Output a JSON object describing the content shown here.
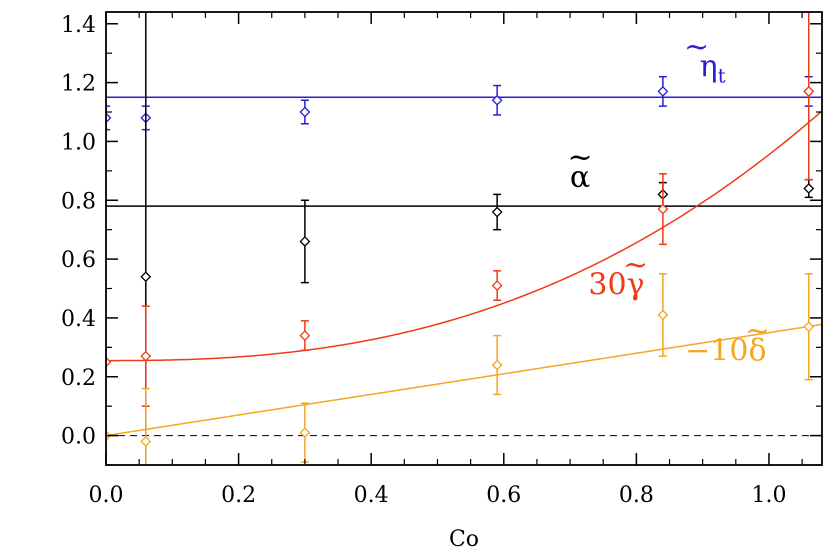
{
  "chart_data": {
    "type": "scatter",
    "xlabel": "Co",
    "xlim": [
      0.0,
      1.08
    ],
    "ylim": [
      -0.1,
      1.44
    ],
    "xticks": [
      0.0,
      0.2,
      0.4,
      0.6,
      0.8,
      1.0
    ],
    "xtick_labels": [
      "0.0",
      "0.2",
      "0.4",
      "0.6",
      "0.8",
      "1.0"
    ],
    "yticks": [
      0.0,
      0.2,
      0.4,
      0.6,
      0.8,
      1.0,
      1.2,
      1.4
    ],
    "ytick_labels": [
      "0.0",
      "0.2",
      "0.4",
      "0.6",
      "0.8",
      "1.0",
      "1.2",
      "1.4"
    ],
    "zero_line": {
      "y": 0.0,
      "style": "dashed",
      "color": "#000000"
    },
    "series": [
      {
        "label_main": "η",
        "label_tilde": "~",
        "label_sub": "t",
        "color": "#2a1fd6",
        "points": [
          {
            "x": 0.0,
            "y": 1.08,
            "err": 0.04
          },
          {
            "x": 0.06,
            "y": 1.08,
            "err": 0.04
          },
          {
            "x": 0.3,
            "y": 1.1,
            "err": 0.04
          },
          {
            "x": 0.59,
            "y": 1.14,
            "err": 0.05
          },
          {
            "x": 0.84,
            "y": 1.17,
            "err": 0.05
          },
          {
            "x": 1.06,
            "y": 1.17,
            "err": 0.05
          }
        ],
        "fit": {
          "kind": "constant",
          "value": 1.15
        }
      },
      {
        "label_main": "α",
        "label_tilde": "~",
        "label_sub": "",
        "color": "#000000",
        "points": [
          {
            "x": 0.06,
            "y": 0.54,
            "err": 0.93
          },
          {
            "x": 0.3,
            "y": 0.66,
            "err": 0.14
          },
          {
            "x": 0.59,
            "y": 0.76,
            "err": 0.06
          },
          {
            "x": 0.84,
            "y": 0.82,
            "err": 0.04
          },
          {
            "x": 1.06,
            "y": 0.84,
            "err": 0.03
          }
        ],
        "fit": {
          "kind": "constant",
          "value": 0.78
        }
      },
      {
        "label_main": "30γ",
        "label_tilde": "~",
        "label_sub": "",
        "color": "#f03a17",
        "points": [
          {
            "x": 0.0,
            "y": 0.25,
            "err": 0.05
          },
          {
            "x": 0.06,
            "y": 0.27,
            "err": 0.17
          },
          {
            "x": 0.3,
            "y": 0.34,
            "err": 0.05
          },
          {
            "x": 0.59,
            "y": 0.51,
            "err": 0.05
          },
          {
            "x": 0.84,
            "y": 0.77,
            "err": 0.12
          },
          {
            "x": 1.06,
            "y": 1.17,
            "err": 0.3
          }
        ],
        "fit": {
          "kind": "poly",
          "a": 0.255,
          "b": 0.7,
          "p": 2.5
        }
      },
      {
        "label_main": "−10δ",
        "label_tilde": "~",
        "label_sub": "",
        "color": "#f5a623",
        "points": [
          {
            "x": 0.0,
            "y": 0.0,
            "err": 0.1
          },
          {
            "x": 0.06,
            "y": -0.02,
            "err": 0.18
          },
          {
            "x": 0.3,
            "y": 0.01,
            "err": 0.1
          },
          {
            "x": 0.59,
            "y": 0.24,
            "err": 0.1
          },
          {
            "x": 0.84,
            "y": 0.41,
            "err": 0.14
          },
          {
            "x": 1.06,
            "y": 0.37,
            "err": 0.18
          }
        ],
        "fit": {
          "kind": "linear",
          "intercept": 0.0,
          "slope": 0.35
        }
      }
    ],
    "annotations": [
      {
        "series": 0,
        "x": 0.915,
        "y": 1.22
      },
      {
        "series": 1,
        "x": 0.715,
        "y": 0.845
      },
      {
        "series": 2,
        "x": 0.77,
        "y": 0.48
      },
      {
        "series": 3,
        "x": 0.935,
        "y": 0.255
      }
    ]
  }
}
